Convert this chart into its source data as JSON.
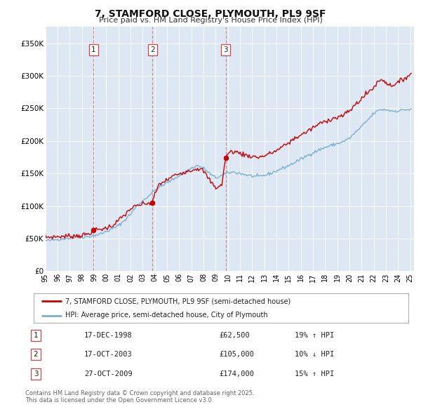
{
  "title": "7, STAMFORD CLOSE, PLYMOUTH, PL9 9SF",
  "subtitle": "Price paid vs. HM Land Registry's House Price Index (HPI)",
  "bg_color": "#ffffff",
  "plot_bg_color": "#dde8f4",
  "line1_color": "#cc0000",
  "line2_color": "#7ab0d4",
  "vline_color": "#cc8888",
  "legend1": "7, STAMFORD CLOSE, PLYMOUTH, PL9 9SF (semi-detached house)",
  "legend2": "HPI: Average price, semi-detached house, City of Plymouth",
  "transactions": [
    {
      "num": 1,
      "date": "17-DEC-1998",
      "price": 62500,
      "year": 1998.96,
      "hpi_pct": "19% ↑ HPI"
    },
    {
      "num": 2,
      "date": "17-OCT-2003",
      "price": 105000,
      "year": 2003.79,
      "hpi_pct": "10% ↓ HPI"
    },
    {
      "num": 3,
      "date": "27-OCT-2009",
      "price": 174000,
      "year": 2009.82,
      "hpi_pct": "15% ↑ HPI"
    }
  ],
  "footer1": "Contains HM Land Registry data © Crown copyright and database right 2025.",
  "footer2": "This data is licensed under the Open Government Licence v3.0.",
  "ylim": [
    0,
    375000
  ],
  "yticks": [
    0,
    50000,
    100000,
    150000,
    200000,
    250000,
    300000,
    350000
  ],
  "ytick_labels": [
    "£0",
    "£50K",
    "£100K",
    "£150K",
    "£200K",
    "£250K",
    "£300K",
    "£350K"
  ],
  "xstart": 1995,
  "xend": 2025
}
